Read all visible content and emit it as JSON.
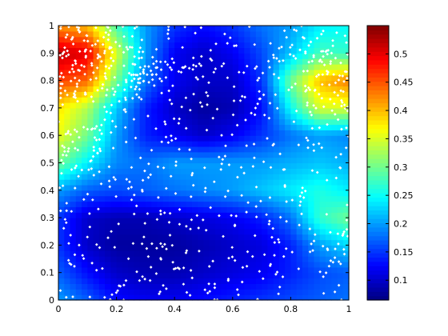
{
  "chart_data": {
    "type": "heatmap",
    "title": "",
    "xlabel": "",
    "ylabel": "",
    "xlim": [
      0,
      1
    ],
    "ylim": [
      0,
      1
    ],
    "x_ticks": [
      0,
      0.2,
      0.4,
      0.6,
      0.8,
      1
    ],
    "x_tick_labels": [
      "0",
      "0.2",
      "0.4",
      "0.6",
      "0.8",
      "1"
    ],
    "y_ticks": [
      0,
      0.1,
      0.2,
      0.3,
      0.4,
      0.5,
      0.6,
      0.7,
      0.8,
      0.9,
      1
    ],
    "y_tick_labels": [
      "0",
      "0.1",
      "0.2",
      "0.3",
      "0.4",
      "0.5",
      "0.6",
      "0.7",
      "0.8",
      "0.9",
      "1"
    ],
    "colormap": "jet",
    "clim": [
      0.065,
      0.55
    ],
    "grid_resolution": 50,
    "x_centers": [
      0,
      0.1,
      0.2,
      0.3,
      0.4,
      0.5,
      0.6,
      0.7,
      0.8,
      0.9,
      1
    ],
    "y_centers": [
      0,
      0.1,
      0.2,
      0.3,
      0.4,
      0.5,
      0.6,
      0.7,
      0.8,
      0.9,
      1
    ],
    "values": [
      [
        0.2,
        0.17,
        0.13,
        0.12,
        0.12,
        0.13,
        0.14,
        0.15,
        0.16,
        0.17,
        0.18
      ],
      [
        0.17,
        0.13,
        0.1,
        0.09,
        0.09,
        0.1,
        0.11,
        0.12,
        0.14,
        0.16,
        0.17
      ],
      [
        0.15,
        0.1,
        0.08,
        0.08,
        0.08,
        0.09,
        0.1,
        0.11,
        0.14,
        0.2,
        0.23
      ],
      [
        0.15,
        0.1,
        0.09,
        0.09,
        0.1,
        0.11,
        0.12,
        0.14,
        0.18,
        0.27,
        0.3
      ],
      [
        0.2,
        0.17,
        0.16,
        0.17,
        0.18,
        0.19,
        0.2,
        0.22,
        0.24,
        0.26,
        0.24
      ],
      [
        0.3,
        0.24,
        0.19,
        0.18,
        0.2,
        0.2,
        0.2,
        0.2,
        0.21,
        0.22,
        0.21
      ],
      [
        0.36,
        0.3,
        0.2,
        0.14,
        0.12,
        0.1,
        0.12,
        0.15,
        0.18,
        0.2,
        0.19
      ],
      [
        0.38,
        0.33,
        0.22,
        0.14,
        0.1,
        0.08,
        0.09,
        0.13,
        0.25,
        0.35,
        0.35
      ],
      [
        0.46,
        0.44,
        0.3,
        0.18,
        0.12,
        0.1,
        0.1,
        0.15,
        0.3,
        0.4,
        0.43
      ],
      [
        0.52,
        0.5,
        0.35,
        0.2,
        0.12,
        0.1,
        0.12,
        0.16,
        0.22,
        0.28,
        0.27
      ],
      [
        0.42,
        0.4,
        0.28,
        0.2,
        0.15,
        0.13,
        0.15,
        0.18,
        0.2,
        0.24,
        0.25
      ]
    ],
    "colorbar": {
      "ticks": [
        0.1,
        0.15,
        0.2,
        0.25,
        0.3,
        0.35,
        0.4,
        0.45,
        0.5
      ],
      "tick_labels": [
        "0.1",
        "0.15",
        "0.2",
        "0.25",
        "0.3",
        "0.35",
        "0.4",
        "0.45",
        "0.5"
      ]
    },
    "scatter": {
      "marker_color": "#ffffff",
      "marker": "dot",
      "count": 800,
      "seed": 7,
      "weighted_regions": [
        {
          "x_range": [
            0.0,
            0.3
          ],
          "y_range": [
            0.72,
            1.0
          ],
          "weight": 110
        },
        {
          "x_range": [
            0.85,
            1.0
          ],
          "y_range": [
            0.65,
            0.85
          ],
          "weight": 40
        },
        {
          "x_range": [
            0.75,
            1.0
          ],
          "y_range": [
            0.85,
            1.0
          ],
          "weight": 35
        },
        {
          "x_range": [
            0.25,
            0.5
          ],
          "y_range": [
            0.75,
            0.9
          ],
          "weight": 40
        },
        {
          "x_range": [
            0.0,
            0.15
          ],
          "y_range": [
            0.45,
            0.65
          ],
          "weight": 35
        }
      ]
    }
  }
}
